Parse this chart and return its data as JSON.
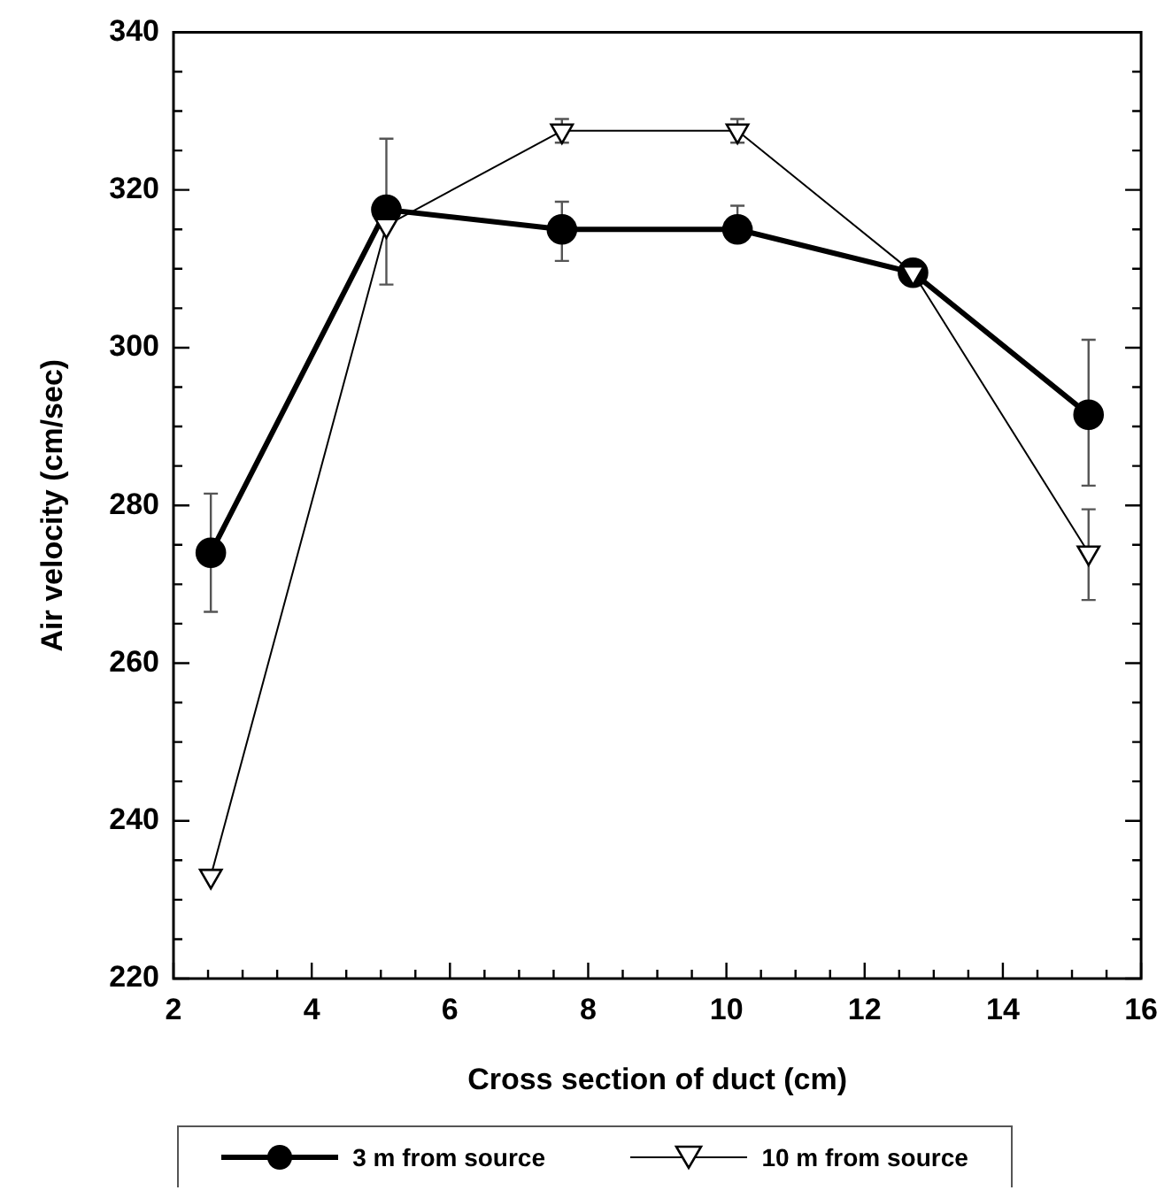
{
  "chart_data": {
    "type": "line",
    "xlabel": "Cross section of duct (cm)",
    "ylabel": "Air velocity (cm/sec)",
    "xlim": [
      2,
      16
    ],
    "xticks": [
      2,
      {
        "value": 2.5,
        "label": null
      },
      {
        "value": 3,
        "label": null
      },
      {
        "value": 3.5,
        "label": null
      },
      4,
      {
        "value": 4.5,
        "label": null
      },
      {
        "value": 5,
        "label": null
      },
      {
        "value": 5.5,
        "label": null
      },
      6,
      {
        "value": 6.5,
        "label": null
      },
      {
        "value": 7,
        "label": null
      },
      {
        "value": 7.5,
        "label": null
      },
      8,
      {
        "value": 8.5,
        "label": null
      },
      {
        "value": 9,
        "label": null
      },
      {
        "value": 9.5,
        "label": null
      },
      10,
      {
        "value": 10.5,
        "label": null
      },
      {
        "value": 11,
        "label": null
      },
      {
        "value": 11.5,
        "label": null
      },
      12,
      {
        "value": 12.5,
        "label": null
      },
      {
        "value": 13,
        "label": null
      },
      {
        "value": 13.5,
        "label": null
      },
      14,
      {
        "value": 14.5,
        "label": null
      },
      {
        "value": 15,
        "label": null
      },
      {
        "value": 15.5,
        "label": null
      },
      16
    ],
    "ylim": [
      220,
      340
    ],
    "yticks": [
      220,
      {
        "value": 225,
        "label": null
      },
      {
        "value": 230,
        "label": null
      },
      {
        "value": 235,
        "label": null
      },
      240,
      {
        "value": 245,
        "label": null
      },
      {
        "value": 250,
        "label": null
      },
      {
        "value": 255,
        "label": null
      },
      260,
      {
        "value": 265,
        "label": null
      },
      {
        "value": 270,
        "label": null
      },
      {
        "value": 275,
        "label": null
      },
      280,
      {
        "value": 285,
        "label": null
      },
      {
        "value": 290,
        "label": null
      },
      {
        "value": 295,
        "label": null
      },
      300,
      {
        "value": 305,
        "label": null
      },
      {
        "value": 310,
        "label": null
      },
      {
        "value": 315,
        "label": null
      },
      320,
      {
        "value": 325,
        "label": null
      },
      {
        "value": 330,
        "label": null
      },
      {
        "value": 335,
        "label": null
      },
      340
    ],
    "x": [
      2.54,
      5.08,
      7.62,
      10.16,
      12.7,
      15.24
    ],
    "legend": "bottom",
    "line_style": "solid",
    "series": [
      {
        "name": "3 m from source",
        "color": "#000000",
        "marker": "circle",
        "values": [
          274,
          317.5,
          315,
          315,
          309.5,
          291.5
        ],
        "errors": [
          [
            266.5,
            281.5
          ],
          [
            308,
            326.5
          ],
          [
            311,
            318.5
          ],
          [
            313.5,
            318
          ],
          null,
          [
            282.5,
            301
          ]
        ]
      },
      {
        "name": "10 m from source",
        "color": "#000000",
        "marker": "triangle",
        "values": [
          233,
          315.5,
          327.5,
          327.5,
          309.5,
          274
        ],
        "errors": [
          null,
          null,
          [
            326,
            329
          ],
          [
            326,
            329
          ],
          null,
          [
            268,
            279.5
          ]
        ]
      }
    ]
  }
}
